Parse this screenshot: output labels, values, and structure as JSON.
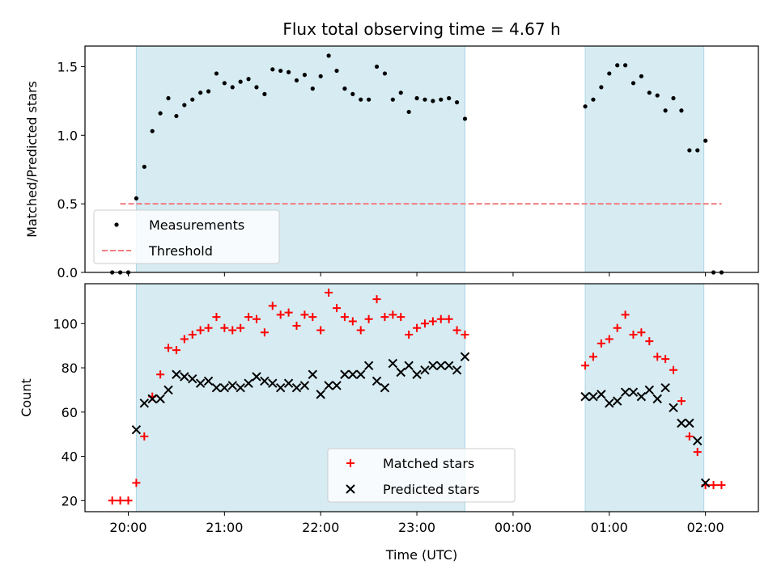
{
  "chart_data": [
    {
      "type": "scatter",
      "title": "Flux total observing time = 4.67 h",
      "xlabel": "",
      "ylabel": "Matched/Predicted stars",
      "xlim": [
        "19:33",
        "02:33"
      ],
      "ylim": [
        0,
        1.65
      ],
      "yticks": [
        "0.0",
        "0.5",
        "1.0",
        "1.5"
      ],
      "grid": false,
      "legend_position": "lower-left",
      "shaded_spans": [
        [
          "20:05",
          "23:30"
        ],
        [
          "00:45",
          "01:59"
        ]
      ],
      "shade_color": "#add8e6",
      "series": [
        {
          "name": "Measurements",
          "marker": "dot",
          "color": "#000000",
          "points": [
            [
              "19:50",
              0.0
            ],
            [
              "19:55",
              0.0
            ],
            [
              "20:00",
              0.0
            ],
            [
              "20:05",
              0.54
            ],
            [
              "20:10",
              0.77
            ],
            [
              "20:15",
              1.03
            ],
            [
              "20:20",
              1.16
            ],
            [
              "20:25",
              1.27
            ],
            [
              "20:30",
              1.14
            ],
            [
              "20:35",
              1.22
            ],
            [
              "20:40",
              1.26
            ],
            [
              "20:45",
              1.31
            ],
            [
              "20:50",
              1.32
            ],
            [
              "20:55",
              1.45
            ],
            [
              "21:00",
              1.38
            ],
            [
              "21:05",
              1.35
            ],
            [
              "21:10",
              1.39
            ],
            [
              "21:15",
              1.41
            ],
            [
              "21:20",
              1.35
            ],
            [
              "21:25",
              1.3
            ],
            [
              "21:30",
              1.48
            ],
            [
              "21:35",
              1.47
            ],
            [
              "21:40",
              1.46
            ],
            [
              "21:45",
              1.4
            ],
            [
              "21:50",
              1.44
            ],
            [
              "21:55",
              1.34
            ],
            [
              "22:00",
              1.43
            ],
            [
              "22:05",
              1.58
            ],
            [
              "22:10",
              1.47
            ],
            [
              "22:15",
              1.34
            ],
            [
              "22:20",
              1.3
            ],
            [
              "22:25",
              1.26
            ],
            [
              "22:30",
              1.26
            ],
            [
              "22:35",
              1.5
            ],
            [
              "22:40",
              1.45
            ],
            [
              "22:45",
              1.26
            ],
            [
              "22:50",
              1.31
            ],
            [
              "22:55",
              1.17
            ],
            [
              "23:00",
              1.27
            ],
            [
              "23:05",
              1.26
            ],
            [
              "23:10",
              1.25
            ],
            [
              "23:15",
              1.26
            ],
            [
              "23:20",
              1.27
            ],
            [
              "23:25",
              1.24
            ],
            [
              "23:30",
              1.12
            ],
            [
              "00:45",
              1.21
            ],
            [
              "00:50",
              1.26
            ],
            [
              "00:55",
              1.35
            ],
            [
              "01:00",
              1.45
            ],
            [
              "01:05",
              1.51
            ],
            [
              "01:10",
              1.51
            ],
            [
              "01:15",
              1.38
            ],
            [
              "01:20",
              1.43
            ],
            [
              "01:25",
              1.31
            ],
            [
              "01:30",
              1.29
            ],
            [
              "01:35",
              1.18
            ],
            [
              "01:40",
              1.27
            ],
            [
              "01:45",
              1.18
            ],
            [
              "01:50",
              0.89
            ],
            [
              "01:55",
              0.89
            ],
            [
              "02:00",
              0.96
            ],
            [
              "02:05",
              0.0
            ],
            [
              "02:10",
              0.0
            ]
          ]
        },
        {
          "name": "Threshold",
          "marker": "dashed-line",
          "color": "#f08080",
          "points": [
            [
              "19:55",
              0.5
            ],
            [
              "02:10",
              0.5
            ]
          ]
        }
      ]
    },
    {
      "type": "scatter",
      "title": "",
      "xlabel": "Time (UTC)",
      "ylabel": "Count",
      "xlim": [
        "19:33",
        "02:33"
      ],
      "ylim": [
        15,
        118
      ],
      "yticks": [
        "20",
        "40",
        "60",
        "80",
        "100"
      ],
      "xticks": [
        "20:00",
        "21:00",
        "22:00",
        "23:00",
        "00:00",
        "01:00",
        "02:00"
      ],
      "grid": false,
      "legend_position": "lower-center",
      "shaded_spans": [
        [
          "20:05",
          "23:30"
        ],
        [
          "00:45",
          "01:59"
        ]
      ],
      "shade_color": "#add8e6",
      "series": [
        {
          "name": "Matched stars",
          "marker": "plus",
          "color": "#ff0000",
          "points": [
            [
              "19:50",
              20
            ],
            [
              "19:55",
              20
            ],
            [
              "20:00",
              20
            ],
            [
              "20:05",
              28
            ],
            [
              "20:10",
              49
            ],
            [
              "20:15",
              67
            ],
            [
              "20:20",
              77
            ],
            [
              "20:25",
              89
            ],
            [
              "20:30",
              88
            ],
            [
              "20:35",
              93
            ],
            [
              "20:40",
              95
            ],
            [
              "20:45",
              97
            ],
            [
              "20:50",
              98
            ],
            [
              "20:55",
              103
            ],
            [
              "21:00",
              98
            ],
            [
              "21:05",
              97
            ],
            [
              "21:10",
              98
            ],
            [
              "21:15",
              103
            ],
            [
              "21:20",
              102
            ],
            [
              "21:25",
              96
            ],
            [
              "21:30",
              108
            ],
            [
              "21:35",
              104
            ],
            [
              "21:40",
              105
            ],
            [
              "21:45",
              99
            ],
            [
              "21:50",
              104
            ],
            [
              "21:55",
              103
            ],
            [
              "22:00",
              97
            ],
            [
              "22:05",
              114
            ],
            [
              "22:10",
              107
            ],
            [
              "22:15",
              103
            ],
            [
              "22:20",
              101
            ],
            [
              "22:25",
              97
            ],
            [
              "22:30",
              102
            ],
            [
              "22:35",
              111
            ],
            [
              "22:40",
              103
            ],
            [
              "22:45",
              104
            ],
            [
              "22:50",
              103
            ],
            [
              "22:55",
              95
            ],
            [
              "23:00",
              98
            ],
            [
              "23:05",
              100
            ],
            [
              "23:10",
              101
            ],
            [
              "23:15",
              102
            ],
            [
              "23:20",
              102
            ],
            [
              "23:25",
              97
            ],
            [
              "23:30",
              95
            ],
            [
              "00:45",
              81
            ],
            [
              "00:50",
              85
            ],
            [
              "00:55",
              91
            ],
            [
              "01:00",
              93
            ],
            [
              "01:05",
              98
            ],
            [
              "01:10",
              104
            ],
            [
              "01:15",
              95
            ],
            [
              "01:20",
              96
            ],
            [
              "01:25",
              92
            ],
            [
              "01:30",
              85
            ],
            [
              "01:35",
              84
            ],
            [
              "01:40",
              79
            ],
            [
              "01:45",
              65
            ],
            [
              "01:50",
              49
            ],
            [
              "01:55",
              42
            ],
            [
              "02:00",
              27
            ],
            [
              "02:05",
              27
            ],
            [
              "02:10",
              27
            ]
          ]
        },
        {
          "name": "Predicted stars",
          "marker": "x",
          "color": "#000000",
          "points": [
            [
              "20:05",
              52
            ],
            [
              "20:10",
              64
            ],
            [
              "20:15",
              66
            ],
            [
              "20:20",
              66
            ],
            [
              "20:25",
              70
            ],
            [
              "20:30",
              77
            ],
            [
              "20:35",
              76
            ],
            [
              "20:40",
              75
            ],
            [
              "20:45",
              73
            ],
            [
              "20:50",
              74
            ],
            [
              "20:55",
              71
            ],
            [
              "21:00",
              71
            ],
            [
              "21:05",
              72
            ],
            [
              "21:10",
              71
            ],
            [
              "21:15",
              73
            ],
            [
              "21:20",
              76
            ],
            [
              "21:25",
              74
            ],
            [
              "21:30",
              73
            ],
            [
              "21:35",
              71
            ],
            [
              "21:40",
              73
            ],
            [
              "21:45",
              71
            ],
            [
              "21:50",
              72
            ],
            [
              "21:55",
              77
            ],
            [
              "22:00",
              68
            ],
            [
              "22:05",
              72
            ],
            [
              "22:10",
              72
            ],
            [
              "22:15",
              77
            ],
            [
              "22:20",
              77
            ],
            [
              "22:25",
              77
            ],
            [
              "22:30",
              81
            ],
            [
              "22:35",
              74
            ],
            [
              "22:40",
              71
            ],
            [
              "22:45",
              82
            ],
            [
              "22:50",
              78
            ],
            [
              "22:55",
              81
            ],
            [
              "23:00",
              77
            ],
            [
              "23:05",
              79
            ],
            [
              "23:10",
              81
            ],
            [
              "23:15",
              81
            ],
            [
              "23:20",
              81
            ],
            [
              "23:25",
              79
            ],
            [
              "23:30",
              85
            ],
            [
              "00:45",
              67
            ],
            [
              "00:50",
              67
            ],
            [
              "00:55",
              68
            ],
            [
              "01:00",
              64
            ],
            [
              "01:05",
              65
            ],
            [
              "01:10",
              69
            ],
            [
              "01:15",
              69
            ],
            [
              "01:20",
              67
            ],
            [
              "01:25",
              70
            ],
            [
              "01:30",
              66
            ],
            [
              "01:35",
              71
            ],
            [
              "01:40",
              62
            ],
            [
              "01:45",
              55
            ],
            [
              "01:50",
              55
            ],
            [
              "01:55",
              47
            ],
            [
              "02:00",
              28
            ]
          ]
        }
      ]
    }
  ]
}
